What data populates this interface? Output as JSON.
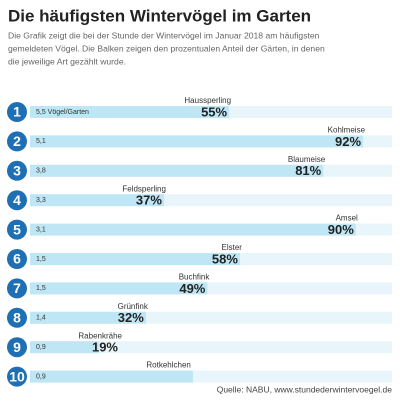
{
  "chart_data": {
    "type": "bar",
    "title": "Die häufigsten Wintervögel im Garten",
    "subtitle": [
      "Die Grafik zeigt die bei der Stunde der Wintervögel im Januar 2018 am häufigsten",
      "gemeldeten Vögel. Die Balken zeigen den prozentualen Anteil der Gärten, in denen",
      "die jeweilige Art gezählt wurde."
    ],
    "ranks": [
      1,
      2,
      3,
      4,
      5,
      6,
      7,
      8,
      9,
      10
    ],
    "categories": [
      "Haussperling",
      "Kohlmeise",
      "Blaumeise",
      "Feldsperling",
      "Amsel",
      "Elster",
      "Buchfink",
      "Grünfink",
      "Rabenkrähe",
      "Rotkehlchen"
    ],
    "per_garden": [
      "5,5 Vögel/Garten",
      "5,1",
      "3,8",
      "3,3",
      "3,1",
      "1,5",
      "1,5",
      "1,4",
      "0,9",
      "0,9"
    ],
    "values": [
      55,
      92,
      81,
      37,
      90,
      58,
      49,
      32,
      19,
      45
    ],
    "value_labels": [
      "55%",
      "92%",
      "81%",
      "37%",
      "90%",
      "58%",
      "49%",
      "32%",
      "19%",
      null
    ],
    "xlim": [
      0,
      100
    ],
    "color": "#bfe6f4",
    "source": "Quelle: NABU, www.stundederwintervoegel.de"
  }
}
